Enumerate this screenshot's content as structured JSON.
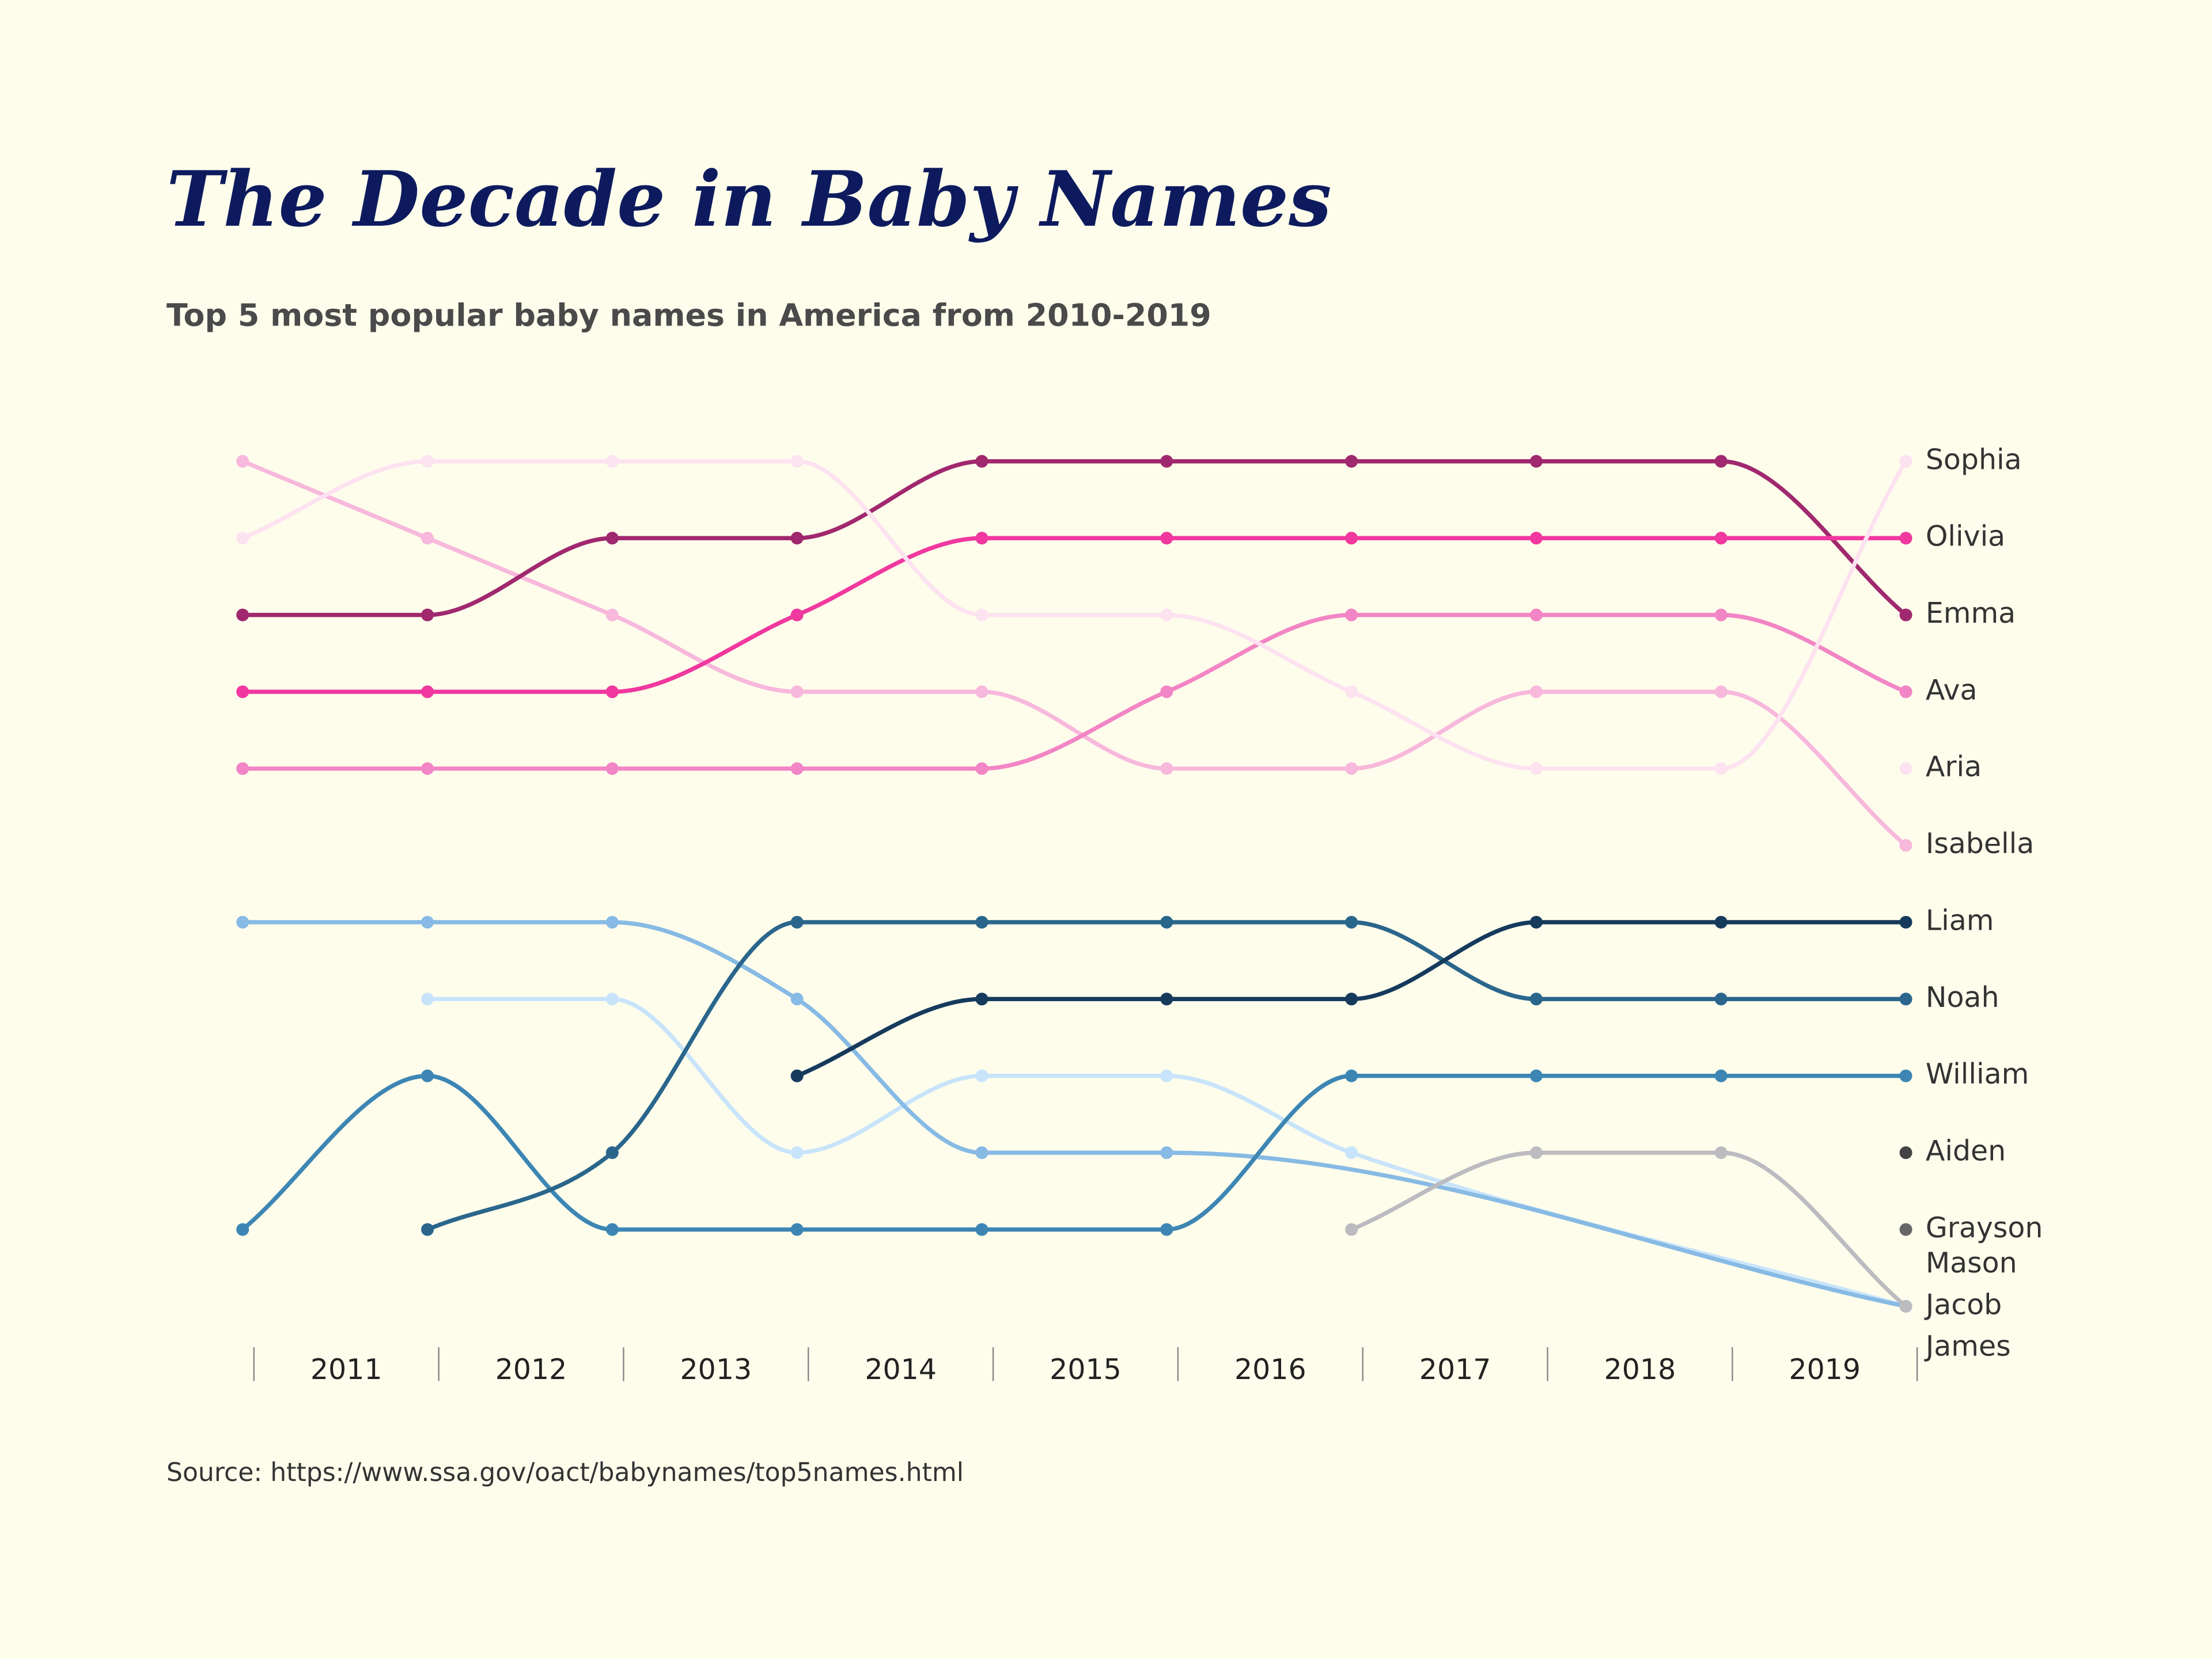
{
  "chart_data": {
    "type": "line",
    "title": "The Decade in Baby Names",
    "subtitle": "Top 5 most popular baby names in America from 2010-2019",
    "source": "Source: https://www.ssa.gov/oact/babynames/top5names.html",
    "categories": [
      null,
      "2011",
      "2012",
      "2013",
      "2014",
      "2015",
      "2016",
      "2017",
      "2018",
      "2019"
    ],
    "ylim": [
      1,
      12
    ],
    "series": [
      {
        "name": "Sophia",
        "color": "#fde2f0",
        "values": [
          2,
          1,
          1,
          1,
          3,
          3,
          4,
          5,
          5,
          1
        ]
      },
      {
        "name": "Olivia",
        "color": "#f0389f",
        "values": [
          4,
          4,
          4,
          3,
          2,
          2,
          2,
          2,
          2,
          2
        ]
      },
      {
        "name": "Emma",
        "color": "#a0286e",
        "values": [
          3,
          3,
          2,
          2,
          1,
          1,
          1,
          1,
          1,
          3
        ]
      },
      {
        "name": "Ava",
        "color": "#f285c5",
        "values": [
          5,
          5,
          5,
          5,
          5,
          4,
          3,
          3,
          3,
          4
        ]
      },
      {
        "name": "Aria",
        "color": "#fde2f0",
        "values": [
          null,
          null,
          null,
          null,
          null,
          null,
          null,
          null,
          null,
          5
        ]
      },
      {
        "name": "Isabella",
        "color": "#f7b8dc",
        "values": [
          1,
          2,
          3,
          4,
          4,
          5,
          5,
          4,
          4,
          6
        ]
      },
      {
        "name": "Liam",
        "color": "#163a5c",
        "values": [
          null,
          null,
          null,
          9,
          8,
          8,
          8,
          7,
          7,
          7
        ]
      },
      {
        "name": "Noah",
        "color": "#2a668c",
        "values": [
          null,
          11,
          10,
          7,
          7,
          7,
          7,
          8,
          8,
          8
        ]
      },
      {
        "name": "William",
        "color": "#3d86b4",
        "values": [
          11,
          9,
          11,
          11,
          11,
          11,
          9,
          9,
          9,
          9
        ]
      },
      {
        "name": "Aiden",
        "color": "#444444",
        "values": [
          null,
          null,
          null,
          null,
          null,
          null,
          null,
          null,
          null,
          10
        ]
      },
      {
        "name": "Grayson",
        "color": "#666666",
        "values": [
          null,
          null,
          null,
          null,
          null,
          null,
          null,
          null,
          null,
          11
        ]
      },
      {
        "name": "Mason",
        "color": "#bbbbc0",
        "values": [
          null,
          null,
          null,
          null,
          null,
          null,
          11,
          10,
          10,
          12
        ]
      },
      {
        "name": "Jacob",
        "color": "#87bae4",
        "values": [
          7,
          7,
          7,
          8,
          10,
          10,
          null,
          null,
          null,
          12
        ]
      },
      {
        "name": "James",
        "color": "#c8e4fa",
        "values": [
          null,
          8,
          8,
          10,
          9,
          9,
          10,
          null,
          null,
          12
        ]
      }
    ]
  }
}
